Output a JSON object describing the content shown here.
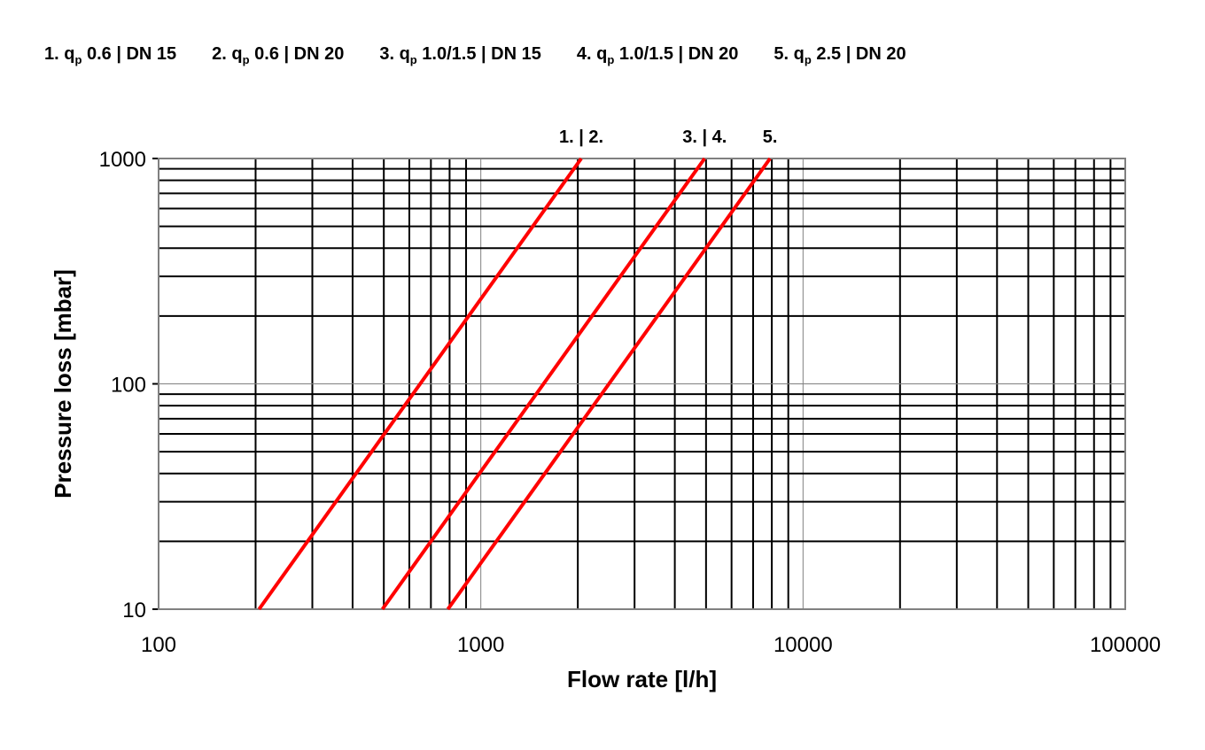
{
  "legend": [
    {
      "prefix": "1. q",
      "sub": "p",
      "suffix": " 0.6 | DN 15"
    },
    {
      "prefix": "2. q",
      "sub": "p",
      "suffix": " 0.6 | DN 20"
    },
    {
      "prefix": "3. q",
      "sub": "p",
      "suffix": " 1.0/1.5 | DN 15"
    },
    {
      "prefix": "4. q",
      "sub": "p",
      "suffix": " 1.0/1.5 | DN 20"
    },
    {
      "prefix": "5. q",
      "sub": "p",
      "suffix": " 2.5 | DN 20"
    }
  ],
  "chart_data": {
    "type": "line",
    "xlabel": "Flow rate [l/h]",
    "ylabel": "Pressure loss [mbar]",
    "xscale": "log",
    "yscale": "log",
    "xlim": [
      100,
      100000
    ],
    "ylim": [
      10,
      1000
    ],
    "xticks": [
      "100",
      "1000",
      "10000",
      "100000"
    ],
    "yticks": [
      "10",
      "100",
      "1000"
    ],
    "grid": true,
    "series": [
      {
        "name": "1. | 2.",
        "color": "#ff0000",
        "x": [
          205,
          2050
        ],
        "y": [
          10,
          1000
        ]
      },
      {
        "name": "3. | 4.",
        "color": "#ff0000",
        "x": [
          495,
          4950
        ],
        "y": [
          10,
          1000
        ]
      },
      {
        "name": "5.",
        "color": "#ff0000",
        "x": [
          790,
          7900
        ],
        "y": [
          10,
          1000
        ]
      }
    ]
  }
}
